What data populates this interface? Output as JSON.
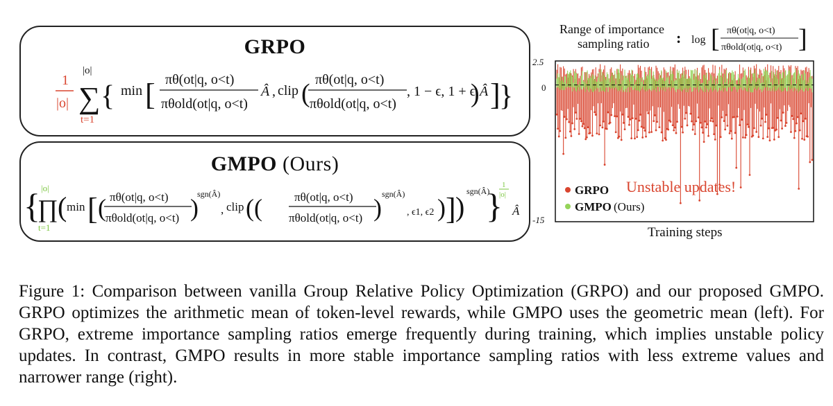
{
  "grpo_box": {
    "title": "GRPO",
    "formula": {
      "coef_num": "1",
      "coef_den": "|o|",
      "sum_top": "|o|",
      "sum_bottom": "t=1",
      "min_label": "min",
      "ratio_num": "πθ(ot|q, o<t)",
      "ratio_den": "πθold(ot|q, o<t)",
      "adv": "Â",
      "clip_label": "clip",
      "clip_bounds": ", 1 − ϵ, 1 + ϵ",
      "colors": {
        "coef": "#d9452f",
        "text": "#111111"
      }
    }
  },
  "gmpo_box": {
    "title_bold": "GMPO",
    "title_normal": "(Ours)",
    "formula": {
      "prod_top": "|o|",
      "prod_bottom": "t=1",
      "min_label": "min",
      "ratio_num": "πθ(ot|q, o<t)",
      "ratio_den": "πθold(ot|q, o<t)",
      "sgn": "sgn(Â)",
      "clip_label": "clip",
      "clip_bounds": ", ϵ1, ϵ2",
      "exp_num": "1",
      "exp_den": "|o|",
      "adv": "Â",
      "colors": {
        "prod": "#7bc63f",
        "text": "#111111"
      }
    }
  },
  "chart_data": {
    "type": "line",
    "title_line1": "Range of importance",
    "title_line2": "sampling ratio",
    "title_colon": ":",
    "formula_log": "log",
    "formula_num": "πθ(ot|q, o<t)",
    "formula_den": "πθold(ot|q, o<t)",
    "xlabel": "Training steps",
    "ylim": [
      -15,
      2.5
    ],
    "yticks": [
      "2.5",
      "0",
      "-15"
    ],
    "zero_line": "dashed",
    "annotation": "Unstable updates!",
    "series": [
      {
        "name": "GRPO",
        "color": "#d9452f",
        "range_upper": [
          0.5,
          2.3
        ],
        "range_lower": [
          -2.0,
          -14.0
        ]
      },
      {
        "name": "GMPO",
        "color": "#95d45a",
        "range_upper": [
          0.0,
          1.8
        ],
        "range_lower": [
          -0.2,
          -2.0
        ]
      }
    ],
    "legend": [
      {
        "bold": "GRPO",
        "normal": "",
        "color": "#d9452f"
      },
      {
        "bold": "GMPO",
        "normal": "(Ours)",
        "color": "#95d45a"
      }
    ]
  },
  "caption": {
    "text": "Figure 1: Comparison between vanilla Group Relative Policy Optimization (GRPO) and our proposed GMPO. GRPO optimizes the arithmetic mean of token-level rewards, while GMPO uses the geometric mean (left). For GRPO, extreme importance sampling ratios emerge frequently during training, which implies unstable policy updates. In contrast, GMPO results in more stable importance sampling ratios with less extreme values and narrower range (right)."
  }
}
